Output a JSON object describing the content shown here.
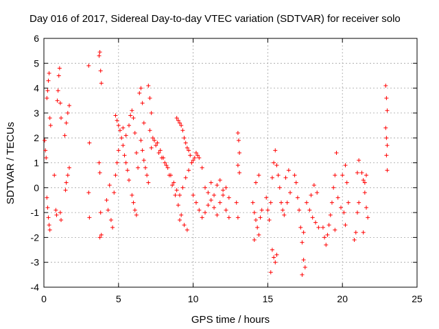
{
  "chart_data": {
    "type": "scatter",
    "title": "Day 016 of 2017, Sidereal Day-to-day VTEC variation (SDTVAR) for receiver solo",
    "xlabel": "GPS time / hours",
    "ylabel": "SDTVAR / TECUs",
    "xlim": [
      0,
      25
    ],
    "ylim": [
      -4,
      6
    ],
    "xticks": [
      "0",
      "5",
      "10",
      "15",
      "20",
      "25"
    ],
    "yticks": [
      "-4",
      "-3",
      "-2",
      "-1",
      "0",
      "1",
      "2",
      "3",
      "4",
      "5",
      "6"
    ],
    "grid": true,
    "marker": "+",
    "series_color": "#ff0000",
    "series": [
      {
        "name": "SDTVAR",
        "points": [
          [
            0.05,
            1.9
          ],
          [
            0.1,
            1.5
          ],
          [
            0.15,
            1.2
          ],
          [
            0.2,
            3.6
          ],
          [
            0.25,
            3.9
          ],
          [
            0.3,
            4.3
          ],
          [
            0.35,
            4.6
          ],
          [
            0.4,
            2.8
          ],
          [
            0.45,
            2.5
          ],
          [
            0.2,
            -0.4
          ],
          [
            0.25,
            -0.8
          ],
          [
            0.3,
            -1.2
          ],
          [
            0.35,
            -1.5
          ],
          [
            0.4,
            -1.7
          ],
          [
            0.7,
            0.5
          ],
          [
            0.8,
            -0.9
          ],
          [
            0.85,
            -1.1
          ],
          [
            0.9,
            3.5
          ],
          [
            0.95,
            3.9
          ],
          [
            1.0,
            4.5
          ],
          [
            1.05,
            4.8
          ],
          [
            1.1,
            3.4
          ],
          [
            1.15,
            2.8
          ],
          [
            1.1,
            -1.0
          ],
          [
            1.15,
            -1.3
          ],
          [
            1.4,
            2.1
          ],
          [
            1.5,
            2.6
          ],
          [
            1.6,
            3.0
          ],
          [
            1.7,
            3.3
          ],
          [
            1.5,
            0.2
          ],
          [
            1.6,
            0.5
          ],
          [
            1.7,
            0.8
          ],
          [
            1.45,
            -0.1
          ],
          [
            3.0,
            4.9
          ],
          [
            3.05,
            1.8
          ],
          [
            3.0,
            -0.2
          ],
          [
            3.05,
            -1.2
          ],
          [
            3.7,
            5.3
          ],
          [
            3.75,
            5.45
          ],
          [
            3.8,
            4.7
          ],
          [
            3.85,
            4.2
          ],
          [
            3.7,
            1.0
          ],
          [
            3.75,
            0.6
          ],
          [
            3.8,
            -1.0
          ],
          [
            3.85,
            -1.9
          ],
          [
            3.75,
            -2.0
          ],
          [
            4.2,
            -0.5
          ],
          [
            4.3,
            -0.9
          ],
          [
            4.4,
            0.1
          ],
          [
            4.5,
            -1.3
          ],
          [
            4.6,
            -1.6
          ],
          [
            4.7,
            -0.2
          ],
          [
            4.8,
            0.5
          ],
          [
            4.9,
            1.0
          ],
          [
            5.0,
            1.5
          ],
          [
            4.8,
            2.9
          ],
          [
            4.9,
            2.7
          ],
          [
            5.0,
            2.5
          ],
          [
            5.1,
            2.3
          ],
          [
            5.2,
            2.0
          ],
          [
            5.3,
            1.7
          ],
          [
            5.4,
            1.3
          ],
          [
            5.5,
            1.0
          ],
          [
            5.6,
            0.7
          ],
          [
            5.7,
            0.3
          ],
          [
            5.3,
            2.4
          ],
          [
            5.5,
            2.1
          ],
          [
            5.7,
            2.5
          ],
          [
            5.8,
            2.9
          ],
          [
            5.9,
            3.1
          ],
          [
            6.0,
            2.8
          ],
          [
            6.1,
            2.2
          ],
          [
            6.2,
            1.4
          ],
          [
            6.3,
            0.8
          ],
          [
            5.9,
            -0.3
          ],
          [
            6.0,
            -0.6
          ],
          [
            6.1,
            -0.9
          ],
          [
            6.2,
            -1.1
          ],
          [
            6.4,
            3.8
          ],
          [
            6.5,
            4.0
          ],
          [
            6.6,
            3.4
          ],
          [
            6.7,
            2.6
          ],
          [
            6.5,
            1.9
          ],
          [
            6.6,
            1.5
          ],
          [
            6.7,
            1.1
          ],
          [
            6.8,
            0.8
          ],
          [
            6.9,
            0.5
          ],
          [
            7.0,
            0.2
          ],
          [
            7.0,
            4.1
          ],
          [
            7.1,
            3.6
          ],
          [
            7.2,
            3.0
          ],
          [
            7.1,
            2.3
          ],
          [
            7.3,
            2.0
          ],
          [
            7.5,
            1.7
          ],
          [
            7.7,
            1.4
          ],
          [
            7.9,
            1.2
          ],
          [
            8.1,
            1.0
          ],
          [
            8.3,
            0.8
          ],
          [
            8.5,
            0.5
          ],
          [
            8.7,
            0.2
          ],
          [
            8.9,
            -0.1
          ],
          [
            9.1,
            -0.3
          ],
          [
            9.3,
            0.0
          ],
          [
            9.5,
            0.4
          ],
          [
            9.7,
            0.7
          ],
          [
            9.9,
            1.0
          ],
          [
            10.1,
            1.2
          ],
          [
            10.3,
            1.3
          ],
          [
            7.2,
            1.6
          ],
          [
            7.4,
            1.9
          ],
          [
            7.6,
            1.8
          ],
          [
            7.8,
            1.5
          ],
          [
            8.0,
            1.2
          ],
          [
            8.2,
            0.9
          ],
          [
            8.4,
            0.5
          ],
          [
            8.6,
            0.1
          ],
          [
            8.8,
            -0.3
          ],
          [
            9.0,
            -0.7
          ],
          [
            9.2,
            -1.1
          ],
          [
            9.4,
            -1.5
          ],
          [
            9.6,
            -1.7
          ],
          [
            9.1,
            -1.3
          ],
          [
            8.9,
            2.8
          ],
          [
            9.0,
            2.7
          ],
          [
            9.1,
            2.6
          ],
          [
            9.2,
            2.5
          ],
          [
            9.3,
            2.3
          ],
          [
            9.4,
            2.0
          ],
          [
            9.5,
            1.8
          ],
          [
            9.6,
            1.6
          ],
          [
            9.7,
            1.5
          ],
          [
            9.8,
            1.3
          ],
          [
            10.0,
            1.1
          ],
          [
            10.2,
            1.4
          ],
          [
            10.4,
            1.2
          ],
          [
            10.6,
            0.8
          ],
          [
            10.0,
            -0.3
          ],
          [
            10.2,
            -0.6
          ],
          [
            10.4,
            -0.9
          ],
          [
            10.6,
            -1.2
          ],
          [
            10.8,
            -1.0
          ],
          [
            11.0,
            -0.7
          ],
          [
            11.2,
            -0.5
          ],
          [
            11.4,
            -0.8
          ],
          [
            11.6,
            -1.1
          ],
          [
            11.8,
            -0.6
          ],
          [
            12.0,
            -0.3
          ],
          [
            12.2,
            -0.9
          ],
          [
            12.4,
            -1.2
          ],
          [
            10.8,
            0.0
          ],
          [
            11.0,
            -0.2
          ],
          [
            11.2,
            0.2
          ],
          [
            11.4,
            -0.3
          ],
          [
            11.6,
            0.1
          ],
          [
            11.8,
            0.3
          ],
          [
            12.0,
            -0.1
          ],
          [
            12.2,
            0.0
          ],
          [
            12.4,
            -0.4
          ],
          [
            13.0,
            2.2
          ],
          [
            13.05,
            1.9
          ],
          [
            13.1,
            1.4
          ],
          [
            13.0,
            0.9
          ],
          [
            13.1,
            0.6
          ],
          [
            12.9,
            -0.6
          ],
          [
            13.0,
            -1.2
          ],
          [
            14.0,
            -0.6
          ],
          [
            14.1,
            -1.0
          ],
          [
            14.2,
            -1.3
          ],
          [
            14.3,
            -1.6
          ],
          [
            14.4,
            -1.9
          ],
          [
            14.5,
            -1.2
          ],
          [
            14.6,
            -0.9
          ],
          [
            14.2,
            0.2
          ],
          [
            14.4,
            0.5
          ],
          [
            14.1,
            -2.1
          ],
          [
            14.9,
            -0.4
          ],
          [
            15.0,
            -0.9
          ],
          [
            15.1,
            -1.3
          ],
          [
            15.2,
            -0.6
          ],
          [
            15.3,
            0.4
          ],
          [
            15.4,
            1.0
          ],
          [
            15.5,
            1.5
          ],
          [
            15.6,
            0.9
          ],
          [
            15.7,
            0.5
          ],
          [
            15.8,
            0.0
          ],
          [
            15.3,
            -2.5
          ],
          [
            15.4,
            -2.8
          ],
          [
            15.5,
            -3.0
          ],
          [
            15.6,
            -2.7
          ],
          [
            15.2,
            -3.4
          ],
          [
            15.9,
            -0.6
          ],
          [
            16.0,
            -0.9
          ],
          [
            16.1,
            -1.1
          ],
          [
            16.3,
            -0.6
          ],
          [
            16.5,
            -0.2
          ],
          [
            16.2,
            0.4
          ],
          [
            16.4,
            0.7
          ],
          [
            16.8,
            0.5
          ],
          [
            16.9,
            0.2
          ],
          [
            17.0,
            -0.4
          ],
          [
            17.1,
            -0.9
          ],
          [
            17.2,
            -1.6
          ],
          [
            17.3,
            -2.2
          ],
          [
            17.4,
            -2.9
          ],
          [
            17.5,
            -3.2
          ],
          [
            17.3,
            -3.5
          ],
          [
            17.4,
            -1.8
          ],
          [
            17.6,
            -0.6
          ],
          [
            17.8,
            -0.9
          ],
          [
            18.0,
            -1.2
          ],
          [
            18.2,
            -1.4
          ],
          [
            18.4,
            -1.6
          ],
          [
            17.9,
            -0.3
          ],
          [
            18.1,
            0.1
          ],
          [
            18.3,
            -0.2
          ],
          [
            18.7,
            -1.6
          ],
          [
            18.8,
            -2.0
          ],
          [
            18.9,
            -2.3
          ],
          [
            19.0,
            -1.9
          ],
          [
            19.1,
            -1.5
          ],
          [
            19.2,
            -1.1
          ],
          [
            19.3,
            -0.6
          ],
          [
            19.4,
            0.0
          ],
          [
            19.5,
            0.5
          ],
          [
            19.6,
            1.4
          ],
          [
            19.5,
            -1.7
          ],
          [
            19.7,
            -0.4
          ],
          [
            19.9,
            -0.8
          ],
          [
            20.1,
            -1.0
          ],
          [
            20.0,
            0.5
          ],
          [
            20.2,
            0.9
          ],
          [
            20.3,
            0.2
          ],
          [
            20.4,
            -0.6
          ],
          [
            20.2,
            -1.5
          ],
          [
            20.8,
            -2.1
          ],
          [
            20.9,
            -1.8
          ],
          [
            21.0,
            -1.0
          ],
          [
            21.1,
            -0.6
          ],
          [
            21.0,
            0.6
          ],
          [
            21.1,
            1.1
          ],
          [
            21.3,
            0.6
          ],
          [
            21.4,
            0.3
          ],
          [
            21.5,
            -0.2
          ],
          [
            21.6,
            -0.8
          ],
          [
            21.7,
            -1.2
          ],
          [
            21.5,
            0.2
          ],
          [
            21.6,
            0.5
          ],
          [
            21.4,
            -1.8
          ],
          [
            22.9,
            4.1
          ],
          [
            22.95,
            3.6
          ],
          [
            23.0,
            3.1
          ],
          [
            22.9,
            2.4
          ],
          [
            22.95,
            2.0
          ],
          [
            23.0,
            1.7
          ],
          [
            22.95,
            1.3
          ],
          [
            23.0,
            0.7
          ]
        ]
      }
    ]
  }
}
